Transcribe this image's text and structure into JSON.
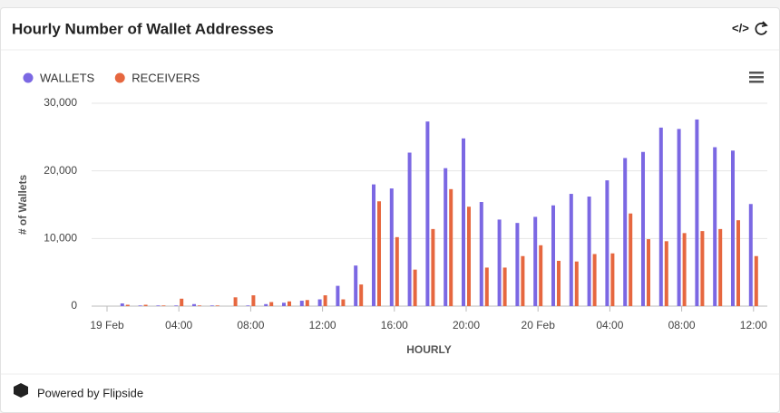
{
  "header": {
    "title": "Hourly Number of Wallet Addresses"
  },
  "chart_data": {
    "type": "bar",
    "categories": [
      "19 Feb",
      null,
      null,
      null,
      "04:00",
      null,
      null,
      null,
      "08:00",
      null,
      null,
      null,
      "12:00",
      null,
      null,
      null,
      "16:00",
      null,
      null,
      null,
      "20:00",
      null,
      null,
      null,
      "20 Feb",
      null,
      null,
      null,
      "04:00",
      null,
      null,
      null,
      "08:00",
      null,
      null,
      null,
      "12:00"
    ],
    "series": [
      {
        "name": "WALLETS",
        "color": "#7b68e3",
        "values": [
          0,
          400,
          100,
          100,
          100,
          300,
          100,
          0,
          100,
          300,
          500,
          800,
          1000,
          3000,
          6000,
          18000,
          17400,
          22700,
          27300,
          20400,
          24800,
          15400,
          12800,
          12300,
          13200,
          14900,
          16600,
          16200,
          18600,
          21900,
          22800,
          26400,
          26200,
          27600,
          23500,
          23000,
          15100
        ]
      },
      {
        "name": "RECEIVERS",
        "color": "#e6673f",
        "values": [
          0,
          200,
          200,
          100,
          1100,
          100,
          100,
          1300,
          1600,
          600,
          700,
          900,
          1600,
          1000,
          3200,
          15500,
          10200,
          5400,
          11400,
          17300,
          14700,
          5700,
          5700,
          7400,
          9000,
          6700,
          6600,
          7700,
          7800,
          13700,
          9900,
          9600,
          10800,
          11100,
          11400,
          12700,
          7400
        ]
      }
    ],
    "ylabel": "# of Wallets",
    "xlabel": "HOURLY",
    "ylim": [
      0,
      30000
    ],
    "yticks": [
      0,
      {
        "value": 10000,
        "label": "10,000"
      },
      {
        "value": 20000,
        "label": "20,000"
      },
      {
        "value": 30000,
        "label": "30,000"
      }
    ],
    "grid": true
  },
  "footer": {
    "text": "Powered by Flipside"
  }
}
